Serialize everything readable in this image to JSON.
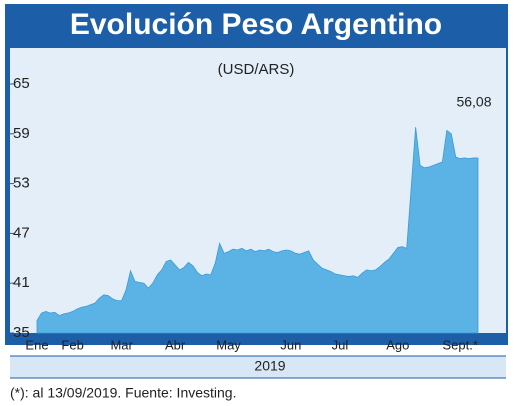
{
  "chart_data": {
    "type": "area",
    "title": "Evolución Peso Argentino",
    "subtitle": "(USD/ARS)",
    "xlabel": "2019",
    "note": "(*): al 13/09/2019. Fuente: Investing.",
    "color": "#5ab3e4",
    "categories": [
      "Ene",
      null,
      null,
      null,
      null,
      null,
      null,
      null,
      "Feb",
      null,
      null,
      null,
      null,
      null,
      null,
      null,
      null,
      null,
      null,
      "Mar",
      null,
      null,
      null,
      null,
      null,
      null,
      null,
      null,
      null,
      null,
      null,
      "Abr",
      null,
      null,
      null,
      null,
      null,
      null,
      null,
      null,
      null,
      null,
      null,
      "May",
      null,
      null,
      null,
      null,
      null,
      null,
      null,
      null,
      null,
      null,
      null,
      null,
      null,
      "Jun",
      null,
      null,
      null,
      null,
      null,
      null,
      null,
      null,
      null,
      null,
      "Jul",
      null,
      null,
      null,
      null,
      null,
      null,
      null,
      null,
      null,
      null,
      null,
      null,
      "Ago",
      null,
      null,
      null,
      null,
      null,
      null,
      null,
      null,
      null,
      null,
      null,
      null,
      null,
      "Sept.*",
      null,
      null,
      null,
      null
    ],
    "values": [
      36.5,
      37.4,
      37.6,
      37.4,
      37.5,
      37.1,
      37.3,
      37.4,
      37.6,
      37.9,
      38.1,
      38.2,
      38.4,
      38.6,
      39.2,
      39.6,
      39.5,
      39.1,
      38.9,
      38.9,
      40.2,
      42.5,
      41.2,
      41.1,
      41.0,
      40.4,
      41.0,
      42.0,
      42.6,
      43.6,
      43.8,
      43.2,
      42.6,
      42.9,
      43.5,
      43.1,
      42.3,
      41.9,
      42.1,
      42.0,
      43.4,
      45.8,
      44.6,
      44.8,
      45.1,
      45.0,
      45.2,
      44.9,
      45.1,
      44.8,
      45.0,
      44.9,
      45.1,
      44.8,
      44.7,
      44.9,
      45.0,
      44.9,
      44.6,
      44.5,
      44.7,
      44.9,
      43.8,
      43.3,
      42.8,
      42.6,
      42.4,
      42.1,
      42.0,
      41.9,
      41.8,
      41.9,
      41.7,
      42.2,
      42.6,
      42.5,
      42.6,
      43.0,
      43.5,
      43.9,
      44.6,
      45.3,
      45.4,
      45.2,
      52.5,
      59.8,
      55.2,
      54.9,
      55.0,
      55.2,
      55.4,
      55.6,
      59.4,
      59.0,
      56.2,
      56.0,
      56.1,
      56.0,
      56.1,
      56.08
    ],
    "value_labels": [
      null,
      null,
      null,
      null,
      null,
      null,
      null,
      null,
      null,
      null,
      null,
      null,
      null,
      null,
      null,
      null,
      null,
      null,
      null,
      null,
      null,
      null,
      null,
      null,
      null,
      null,
      null,
      null,
      null,
      null,
      null,
      null,
      null,
      null,
      null,
      null,
      null,
      null,
      null,
      null,
      null,
      null,
      null,
      null,
      null,
      null,
      null,
      null,
      null,
      null,
      null,
      null,
      null,
      null,
      null,
      null,
      null,
      null,
      null,
      null,
      null,
      null,
      null,
      null,
      null,
      null,
      null,
      null,
      null,
      null,
      null,
      null,
      null,
      null,
      null,
      null,
      null,
      null,
      null,
      null,
      null,
      null,
      null,
      null,
      null,
      null,
      null,
      null,
      null,
      null,
      null,
      null,
      null,
      null,
      null,
      null,
      null,
      null,
      null,
      "56,08"
    ],
    "ylim": [
      35,
      65
    ],
    "yticks": [
      35,
      41,
      47,
      53,
      59,
      65
    ]
  }
}
